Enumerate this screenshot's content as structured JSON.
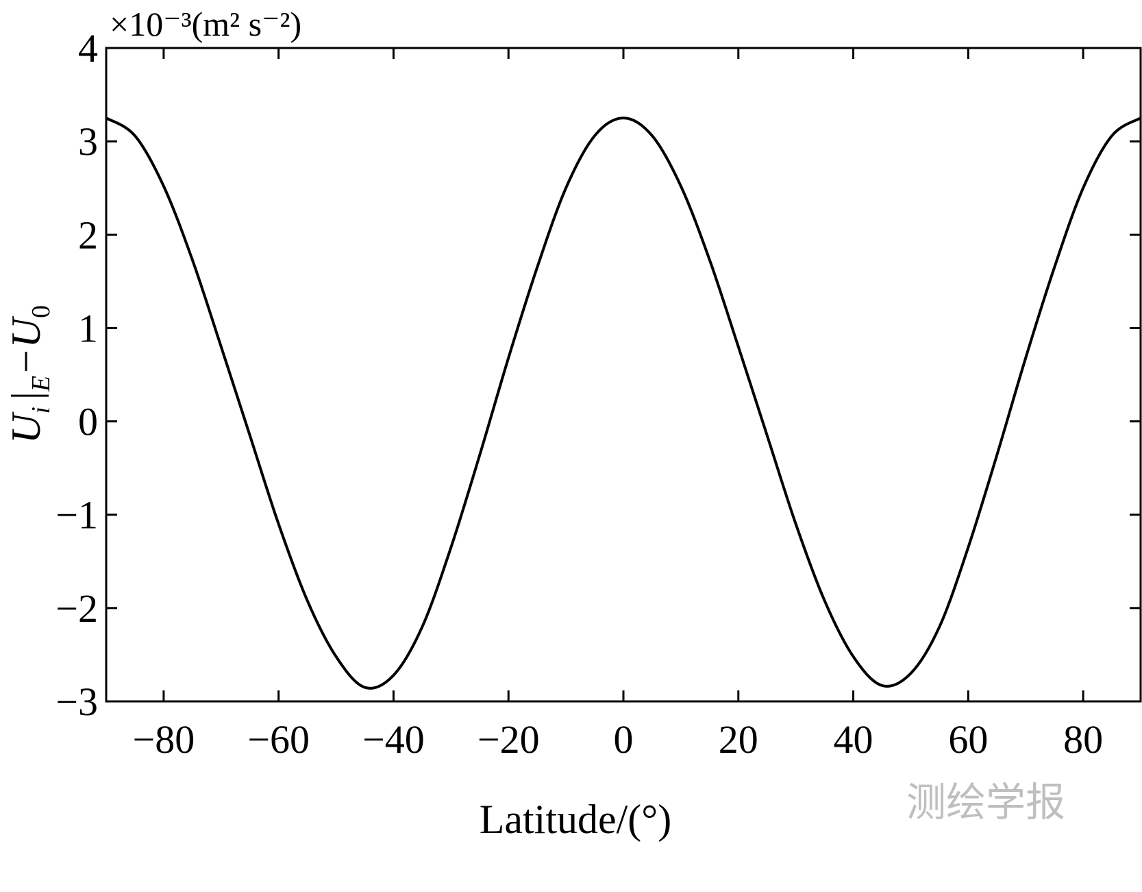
{
  "chart_data": {
    "type": "line",
    "xlabel": "Latitude/(°)",
    "ylabel": {
      "main": "U",
      "sub_i": "i",
      "sep": "|",
      "sub_E": "E",
      "minus": "−U",
      "sub_0": "0"
    },
    "y_unit": "×10⁻³(m² s⁻²)",
    "xlim": [
      -90,
      90
    ],
    "ylim": [
      -3,
      4
    ],
    "xticks": [
      -80,
      -60,
      -40,
      -20,
      0,
      20,
      40,
      60,
      80
    ],
    "xtick_labels": [
      "−80",
      "−60",
      "−40",
      "−20",
      "0",
      "20",
      "40",
      "60",
      "80"
    ],
    "yticks": [
      -3,
      -2,
      -1,
      0,
      1,
      2,
      3,
      4
    ],
    "ytick_labels": [
      "−3",
      "−2",
      "−1",
      "0",
      "1",
      "2",
      "3",
      "4"
    ],
    "grid": false,
    "series": [
      {
        "color": "#000000",
        "x": [
          -90,
          -85,
          -80,
          -75,
          -70,
          -65,
          -60,
          -55,
          -50,
          -45,
          -40,
          -35,
          -30,
          -25,
          -20,
          -15,
          -10,
          -5,
          0,
          5,
          10,
          15,
          20,
          25,
          30,
          35,
          40,
          45,
          50,
          55,
          60,
          65,
          70,
          75,
          80,
          85,
          90
        ],
        "y": [
          3.25,
          3.06,
          2.52,
          1.73,
          0.8,
          -0.15,
          -1.1,
          -1.92,
          -2.52,
          -2.85,
          -2.72,
          -2.2,
          -1.35,
          -0.36,
          0.68,
          1.65,
          2.5,
          3.06,
          3.25,
          3.06,
          2.52,
          1.73,
          0.8,
          -0.15,
          -1.1,
          -1.92,
          -2.52,
          -2.83,
          -2.7,
          -2.2,
          -1.35,
          -0.36,
          0.68,
          1.65,
          2.5,
          3.06,
          3.25
        ]
      }
    ]
  },
  "watermark": "测绘学报"
}
